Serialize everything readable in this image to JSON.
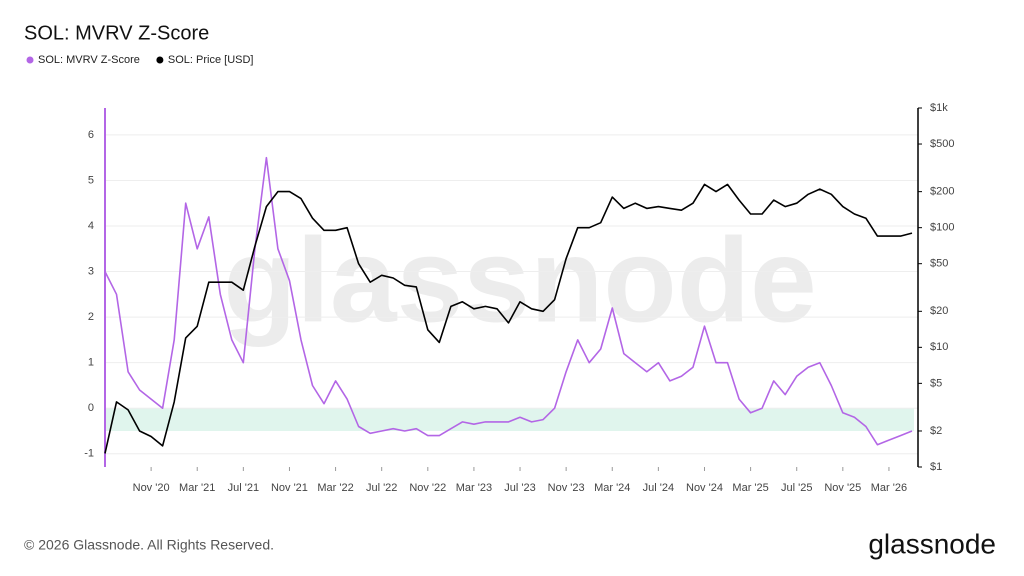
{
  "chart_data": {
    "type": "line",
    "title": "SOL: MVRV Z-Score",
    "watermark": "glassnode",
    "footer": "© 2026 Glassnode. All Rights Reserved.",
    "logo": "glassnode",
    "x": [
      "2020-07",
      "2020-08",
      "2020-09",
      "2020-10",
      "2020-11",
      "2020-12",
      "2021-01",
      "2021-02",
      "2021-03",
      "2021-04",
      "2021-05",
      "2021-06",
      "2021-07",
      "2021-08",
      "2021-09",
      "2021-10",
      "2021-11",
      "2021-12",
      "2022-01",
      "2022-02",
      "2022-03",
      "2022-04",
      "2022-05",
      "2022-06",
      "2022-07",
      "2022-08",
      "2022-09",
      "2022-10",
      "2022-11",
      "2022-12",
      "2023-01",
      "2023-02",
      "2023-03",
      "2023-04",
      "2023-05",
      "2023-06",
      "2023-07",
      "2023-08",
      "2023-09",
      "2023-10",
      "2023-11",
      "2023-12",
      "2024-01",
      "2024-02",
      "2024-03",
      "2024-04",
      "2024-05",
      "2024-06",
      "2024-07",
      "2024-08",
      "2024-09",
      "2024-10",
      "2024-11",
      "2024-12",
      "2025-01",
      "2025-02",
      "2025-03",
      "2025-04",
      "2025-05",
      "2025-06",
      "2025-07",
      "2025-08",
      "2025-09",
      "2025-10",
      "2025-11",
      "2025-12",
      "2026-01",
      "2026-02",
      "2026-03",
      "2026-04",
      "2026-05"
    ],
    "series": [
      {
        "name": "SOL: MVRV Z-Score",
        "color": "#b366e6",
        "axis": "y",
        "values": [
          3.0,
          2.5,
          0.8,
          0.4,
          0.2,
          0.0,
          1.5,
          4.5,
          3.5,
          4.2,
          2.5,
          1.5,
          1.0,
          3.5,
          5.5,
          3.5,
          2.8,
          1.5,
          0.5,
          0.1,
          0.6,
          0.2,
          -0.4,
          -0.55,
          -0.5,
          -0.45,
          -0.5,
          -0.45,
          -0.6,
          -0.6,
          -0.45,
          -0.3,
          -0.35,
          -0.3,
          -0.3,
          -0.3,
          -0.2,
          -0.3,
          -0.25,
          0.0,
          0.8,
          1.5,
          1.0,
          1.3,
          2.2,
          1.2,
          1.0,
          0.8,
          1.0,
          0.6,
          0.7,
          0.9,
          1.8,
          1.0,
          1.0,
          0.2,
          -0.1,
          0.0,
          0.6,
          0.3,
          0.7,
          0.9,
          1.0,
          0.5,
          -0.1,
          -0.2,
          -0.4,
          -0.8,
          -0.7,
          -0.6,
          -0.5
        ]
      },
      {
        "name": "SOL: Price [USD]",
        "color": "#000000",
        "axis": "y2",
        "values": [
          1.3,
          3.5,
          3,
          2,
          1.8,
          1.5,
          3.5,
          12,
          15,
          35,
          35,
          35,
          30,
          70,
          150,
          200,
          200,
          175,
          120,
          95,
          95,
          100,
          50,
          35,
          40,
          38,
          33,
          32,
          14,
          11,
          22,
          24,
          21,
          22,
          21,
          16,
          24,
          21,
          20,
          25,
          55,
          100,
          100,
          110,
          180,
          145,
          160,
          145,
          150,
          145,
          140,
          160,
          230,
          200,
          230,
          170,
          130,
          130,
          170,
          150,
          160,
          190,
          210,
          190,
          150,
          130,
          120,
          85,
          85,
          85,
          90
        ]
      }
    ],
    "highlight_range": [
      -0.5,
      0
    ],
    "xlim": [
      "2020-07",
      "2026-05"
    ],
    "xticks": [
      {
        "value": "2020-11",
        "label": "Nov '20"
      },
      {
        "value": "2021-03",
        "label": "Mar '21"
      },
      {
        "value": "2021-07",
        "label": "Jul '21"
      },
      {
        "value": "2021-11",
        "label": "Nov '21"
      },
      {
        "value": "2022-03",
        "label": "Mar '22"
      },
      {
        "value": "2022-07",
        "label": "Jul '22"
      },
      {
        "value": "2022-11",
        "label": "Nov '22"
      },
      {
        "value": "2023-03",
        "label": "Mar '23"
      },
      {
        "value": "2023-07",
        "label": "Jul '23"
      },
      {
        "value": "2023-11",
        "label": "Nov '23"
      },
      {
        "value": "2024-03",
        "label": "Mar '24"
      },
      {
        "value": "2024-07",
        "label": "Jul '24"
      },
      {
        "value": "2024-11",
        "label": "Nov '24"
      },
      {
        "value": "2025-03",
        "label": "Mar '25"
      },
      {
        "value": "2025-07",
        "label": "Jul '25"
      },
      {
        "value": "2025-11",
        "label": "Nov '25"
      },
      {
        "value": "2026-03",
        "label": "Mar '26"
      }
    ],
    "ylim": [
      -1.29,
      6.59
    ],
    "yticks": [
      -1,
      0,
      1,
      2,
      3,
      4,
      5,
      6
    ],
    "y2lim": [
      1,
      1000
    ],
    "y2log": true,
    "y2ticks": [
      {
        "value": 1,
        "label": "$1"
      },
      {
        "value": 2,
        "label": "$2"
      },
      {
        "value": 5,
        "label": "$5"
      },
      {
        "value": 10,
        "label": "$10"
      },
      {
        "value": 20,
        "label": "$20"
      },
      {
        "value": 50,
        "label": "$50"
      },
      {
        "value": 100,
        "label": "$100"
      },
      {
        "value": 200,
        "label": "$200"
      },
      {
        "value": 500,
        "label": "$500"
      },
      {
        "value": 1000,
        "label": "$1k"
      }
    ],
    "grid": true,
    "legend": "top-left"
  }
}
